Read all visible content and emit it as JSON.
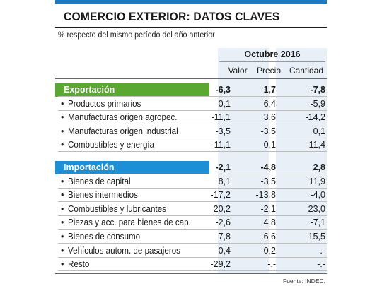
{
  "title": "COMERCIO EXTERIOR: DATOS CLAVES",
  "subtitle": "% respecto del mismo período del año anterior",
  "period": "Octubre 2016",
  "columns": [
    "Valor",
    "Precio",
    "Cantidad"
  ],
  "source": "Fuente: INDEC.",
  "colors": {
    "export_band": "#5aa832",
    "import_band": "#1e8fd5",
    "top_bar": "#1e7bc1",
    "column_shade": "#e8eff6"
  },
  "chart_data": {
    "type": "table",
    "title": "COMERCIO EXTERIOR: DATOS CLAVES",
    "columns": [
      "Valor",
      "Precio",
      "Cantidad"
    ],
    "sections": [
      {
        "name": "Exportación",
        "totals": [
          "-6,3",
          "1,7",
          "-7,8"
        ],
        "rows": [
          {
            "label": "Productos primarios",
            "values": [
              "0,1",
              "6,4",
              "-5,9"
            ]
          },
          {
            "label": "Manufacturas origen agropec.",
            "values": [
              "-11,1",
              "3,6",
              "-14,2"
            ]
          },
          {
            "label": "Manufacturas origen industrial",
            "values": [
              "-3,5",
              "-3,5",
              "0,1"
            ]
          },
          {
            "label": "Combustibles y energía",
            "values": [
              "-11,1",
              "0,1",
              "-11,4"
            ]
          }
        ]
      },
      {
        "name": "Importación",
        "totals": [
          "-2,1",
          "-4,8",
          "2,8"
        ],
        "rows": [
          {
            "label": "Bienes de capital",
            "values": [
              "8,1",
              "-3,5",
              "11,9"
            ]
          },
          {
            "label": "Bienes intermedios",
            "values": [
              "-17,2",
              "-13,8",
              "-4,0"
            ]
          },
          {
            "label": "Combustibles y lubricantes",
            "values": [
              "20,2",
              "-2,1",
              "23,0"
            ]
          },
          {
            "label": "Piezas y acc. para bienes de cap.",
            "values": [
              "-2,6",
              "4,8",
              "-7,1"
            ]
          },
          {
            "label": "Bienes de consumo",
            "values": [
              "7,8",
              "-6,6",
              "15,5"
            ]
          },
          {
            "label": "Vehículos autom. de pasajeros",
            "values": [
              "0,4",
              "0,2",
              "-.-"
            ]
          },
          {
            "label": "Resto",
            "values": [
              "-29,2",
              "-.-",
              "-.-"
            ]
          }
        ]
      }
    ]
  }
}
